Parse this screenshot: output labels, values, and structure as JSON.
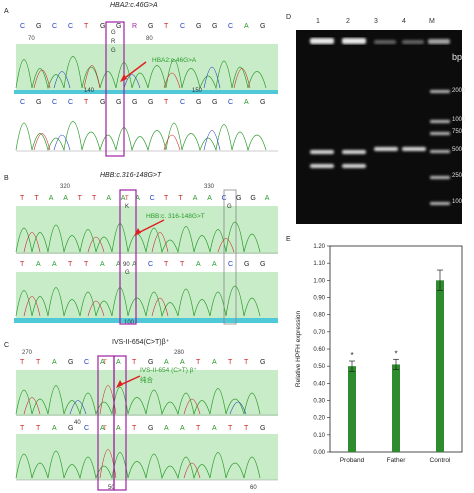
{
  "panels": {
    "A": {
      "letter": "A",
      "title": "HBA2:c.46G>A",
      "seq_top": [
        "C",
        "G",
        "C",
        "C",
        "T",
        "G",
        "G",
        "R",
        "G",
        "T",
        "C",
        "G",
        "G",
        "C",
        "A",
        "G"
      ],
      "het_code": "G",
      "het_label_2": "R",
      "het_label_3": "G",
      "pos_70": "70",
      "pos_80": "80",
      "pos_140": "140",
      "pos_150": "150",
      "annotation": "HBA2:c.46G>A",
      "seq_bottom": [
        "C",
        "G",
        "C",
        "C",
        "T",
        "G",
        "G",
        "G",
        "G",
        "T",
        "C",
        "G",
        "G",
        "C",
        "A",
        "G"
      ]
    },
    "B": {
      "letter": "B",
      "title": "HBB:c.316-148G>T",
      "pos_320": "320",
      "pos_330": "330",
      "seq_top": [
        "T",
        "T",
        "A",
        "A",
        "T",
        "T",
        "A",
        "A",
        "A",
        "C",
        "T",
        "T",
        "A",
        "A",
        "C",
        "G",
        "G",
        "A"
      ],
      "box_labels": [
        "T",
        "K",
        "G"
      ],
      "annotation": "HBB:c. 316-148G>T",
      "pos_90": "90",
      "pos_100": "100",
      "seq_bottom": [
        "T",
        "A",
        "A",
        "T",
        "T",
        "A",
        "A",
        "A",
        "C",
        "T",
        "T",
        "A",
        "A",
        "C",
        "G",
        "G"
      ],
      "side_label": "G"
    },
    "C": {
      "letter": "C",
      "title": "IVS-II-654(C>T)β⁺",
      "pos_270": "270",
      "pos_280": "280",
      "seq_top": [
        "T",
        "T",
        "A",
        "G",
        "C",
        "A",
        "A",
        "T",
        "G",
        "A",
        "A",
        "T",
        "A",
        "T",
        "T",
        "G"
      ],
      "box_labels": [
        "T",
        "T"
      ],
      "annotation": "IVS-II-654 (C>T) β⁺",
      "annotation_2": "纯合",
      "pos_40": "40",
      "pos_50": "50",
      "pos_60": "60",
      "seq_bottom": [
        "T",
        "T",
        "A",
        "G",
        "C",
        "A",
        "A",
        "T",
        "G",
        "A",
        "A",
        "T",
        "A",
        "T",
        "T",
        "G"
      ]
    },
    "D": {
      "letter": "D",
      "lanes": [
        "1",
        "2",
        "3",
        "4",
        "M"
      ],
      "bp_label": "bp",
      "ladder": [
        "2000",
        "1000",
        "750",
        "500",
        "250",
        "100"
      ]
    },
    "E": {
      "letter": "E",
      "ylabel": "Relative HPFH expression",
      "star": "*"
    }
  },
  "chart_data": {
    "type": "bar",
    "categories": [
      "Proband",
      "Father",
      "Control"
    ],
    "values": [
      0.5,
      0.51,
      1.0
    ],
    "errors": [
      0.03,
      0.03,
      0.06
    ],
    "significance": [
      "*",
      "*",
      ""
    ],
    "ylabel": "Relative HPFH expression",
    "ylim": [
      0,
      1.2
    ],
    "yticks": [
      "0.00",
      "0.10",
      "0.20",
      "0.30",
      "0.40",
      "0.50",
      "0.60",
      "0.70",
      "0.80",
      "0.90",
      "1.00",
      "1.10",
      "1.20"
    ],
    "color": "#2e8b2e"
  },
  "colors": {
    "A": "#2a9a2a",
    "C": "#1f3fbf",
    "G": "#222222",
    "T": "#cc2222",
    "box": "#a020a0",
    "arrow": "#e02020",
    "band": "#a8e0a8",
    "baseline": "#4fc8d8"
  }
}
